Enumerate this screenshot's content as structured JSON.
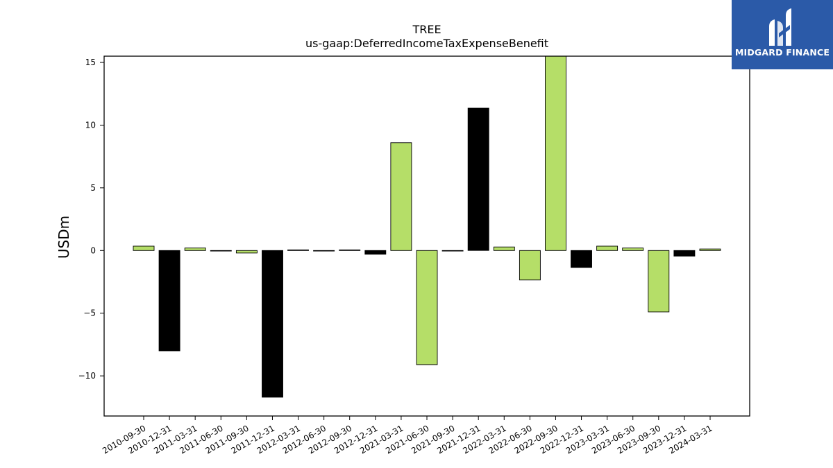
{
  "chart_data": {
    "type": "bar",
    "title": "TREE",
    "subtitle": "us-gaap:DeferredIncomeTaxExpenseBenefit",
    "ylabel": "USDm",
    "xlabel": "",
    "ylim": [
      -13.2,
      15.5
    ],
    "yticks": [
      -10,
      -5,
      0,
      5,
      10,
      15
    ],
    "grid": false,
    "categories": [
      "2010-09-30",
      "2010-12-31",
      "2011-03-31",
      "2011-06-30",
      "2011-09-30",
      "2011-12-31",
      "2012-03-31",
      "2012-06-30",
      "2012-09-30",
      "2012-12-31",
      "2021-03-31",
      "2021-06-30",
      "2021-09-30",
      "2021-12-31",
      "2022-03-31",
      "2022-06-30",
      "2022-09-30",
      "2022-12-31",
      "2023-03-31",
      "2023-06-30",
      "2023-09-30",
      "2023-12-31",
      "2024-03-31"
    ],
    "values": [
      0.35,
      -8.0,
      0.2,
      -0.02,
      -0.2,
      -11.7,
      0.05,
      -0.02,
      0.05,
      -0.3,
      8.6,
      -9.1,
      -0.02,
      11.35,
      0.28,
      -2.35,
      15.5,
      -1.35,
      0.35,
      0.2,
      -4.9,
      -0.45,
      0.12
    ],
    "colors": [
      "#b5de68",
      "#000000",
      "#b5de68",
      "#000000",
      "#b5de68",
      "#000000",
      "#000000",
      "#000000",
      "#000000",
      "#000000",
      "#b5de68",
      "#b5de68",
      "#000000",
      "#000000",
      "#b5de68",
      "#b5de68",
      "#b5de68",
      "#000000",
      "#b5de68",
      "#b5de68",
      "#b5de68",
      "#000000",
      "#b5de68"
    ]
  },
  "logo": {
    "text": "MIDGARD FINANCE",
    "background": "#2b5aa8"
  }
}
